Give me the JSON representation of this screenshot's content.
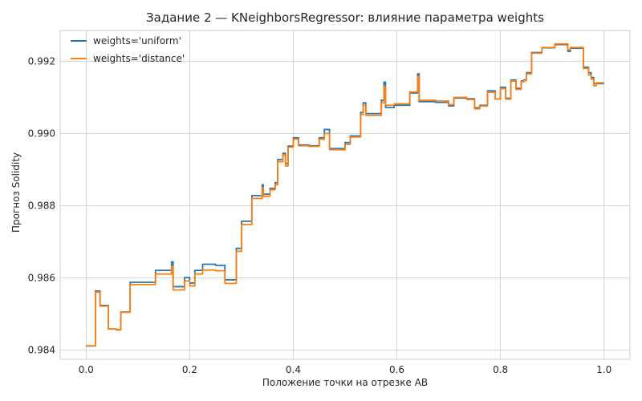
{
  "chart_data": {
    "type": "line",
    "title": "Задание 2 — KNeighborsRegressor: влияние параметра weights",
    "xlabel": "Положение точки на отрезке AB",
    "ylabel": "Прогноз Solidity",
    "xlim": [
      -0.05,
      1.05
    ],
    "ylim": [
      0.98375,
      0.99285
    ],
    "xticks": [
      0.0,
      0.2,
      0.4,
      0.6,
      0.8,
      1.0
    ],
    "xtick_labels": [
      "0.0",
      "0.2",
      "0.4",
      "0.6",
      "0.8",
      "1.0"
    ],
    "yticks": [
      0.984,
      0.986,
      0.988,
      0.99,
      0.992
    ],
    "ytick_labels": [
      "0.984",
      "0.986",
      "0.988",
      "0.990",
      "0.992"
    ],
    "grid": true,
    "legend_position": "top-left",
    "series": [
      {
        "name": "weights='uniform'",
        "color": "#1f77b4",
        "points": [
          [
            0.0,
            0.98412
          ],
          [
            0.018,
            0.98412
          ],
          [
            0.018,
            0.98564
          ],
          [
            0.027,
            0.98564
          ],
          [
            0.027,
            0.98524
          ],
          [
            0.043,
            0.98524
          ],
          [
            0.043,
            0.98459
          ],
          [
            0.058,
            0.98459
          ],
          [
            0.058,
            0.98457
          ],
          [
            0.067,
            0.98457
          ],
          [
            0.067,
            0.98506
          ],
          [
            0.085,
            0.98506
          ],
          [
            0.085,
            0.98588
          ],
          [
            0.134,
            0.98588
          ],
          [
            0.134,
            0.98621
          ],
          [
            0.165,
            0.98621
          ],
          [
            0.165,
            0.98645
          ],
          [
            0.168,
            0.98645
          ],
          [
            0.168,
            0.98576
          ],
          [
            0.19,
            0.98576
          ],
          [
            0.19,
            0.98601
          ],
          [
            0.2,
            0.98601
          ],
          [
            0.2,
            0.98586
          ],
          [
            0.21,
            0.98586
          ],
          [
            0.21,
            0.98621
          ],
          [
            0.225,
            0.98621
          ],
          [
            0.225,
            0.98638
          ],
          [
            0.25,
            0.98638
          ],
          [
            0.25,
            0.98635
          ],
          [
            0.268,
            0.98635
          ],
          [
            0.268,
            0.98595
          ],
          [
            0.29,
            0.98595
          ],
          [
            0.29,
            0.98682
          ],
          [
            0.3,
            0.98682
          ],
          [
            0.3,
            0.98757
          ],
          [
            0.32,
            0.98757
          ],
          [
            0.32,
            0.98828
          ],
          [
            0.34,
            0.98828
          ],
          [
            0.34,
            0.98858
          ],
          [
            0.342,
            0.98858
          ],
          [
            0.342,
            0.98832
          ],
          [
            0.355,
            0.98832
          ],
          [
            0.355,
            0.98848
          ],
          [
            0.365,
            0.98848
          ],
          [
            0.365,
            0.98864
          ],
          [
            0.37,
            0.98864
          ],
          [
            0.37,
            0.98928
          ],
          [
            0.38,
            0.98928
          ],
          [
            0.38,
            0.98945
          ],
          [
            0.385,
            0.98945
          ],
          [
            0.385,
            0.98917
          ],
          [
            0.39,
            0.98917
          ],
          [
            0.39,
            0.98965
          ],
          [
            0.4,
            0.98965
          ],
          [
            0.4,
            0.98988
          ],
          [
            0.41,
            0.98988
          ],
          [
            0.41,
            0.98968
          ],
          [
            0.43,
            0.98968
          ],
          [
            0.43,
            0.98966
          ],
          [
            0.45,
            0.98966
          ],
          [
            0.45,
            0.98988
          ],
          [
            0.46,
            0.98988
          ],
          [
            0.46,
            0.99011
          ],
          [
            0.47,
            0.99011
          ],
          [
            0.47,
            0.98958
          ],
          [
            0.5,
            0.98958
          ],
          [
            0.5,
            0.98975
          ],
          [
            0.51,
            0.98975
          ],
          [
            0.51,
            0.98993
          ],
          [
            0.53,
            0.98993
          ],
          [
            0.53,
            0.99058
          ],
          [
            0.535,
            0.99058
          ],
          [
            0.535,
            0.99085
          ],
          [
            0.54,
            0.99085
          ],
          [
            0.54,
            0.99055
          ],
          [
            0.57,
            0.99055
          ],
          [
            0.57,
            0.99092
          ],
          [
            0.575,
            0.99092
          ],
          [
            0.575,
            0.99142
          ],
          [
            0.578,
            0.99142
          ],
          [
            0.578,
            0.99072
          ],
          [
            0.595,
            0.99072
          ],
          [
            0.595,
            0.99078
          ],
          [
            0.625,
            0.99078
          ],
          [
            0.625,
            0.99112
          ],
          [
            0.64,
            0.99112
          ],
          [
            0.64,
            0.99165
          ],
          [
            0.643,
            0.99165
          ],
          [
            0.643,
            0.99088
          ],
          [
            0.675,
            0.99088
          ],
          [
            0.675,
            0.99086
          ],
          [
            0.7,
            0.99086
          ],
          [
            0.7,
            0.99076
          ],
          [
            0.71,
            0.99076
          ],
          [
            0.71,
            0.99098
          ],
          [
            0.735,
            0.99098
          ],
          [
            0.735,
            0.99096
          ],
          [
            0.75,
            0.99096
          ],
          [
            0.75,
            0.99071
          ],
          [
            0.76,
            0.99071
          ],
          [
            0.76,
            0.99078
          ],
          [
            0.775,
            0.99078
          ],
          [
            0.775,
            0.99118
          ],
          [
            0.79,
            0.99118
          ],
          [
            0.79,
            0.99095
          ],
          [
            0.8,
            0.99095
          ],
          [
            0.8,
            0.99128
          ],
          [
            0.81,
            0.99128
          ],
          [
            0.81,
            0.99097
          ],
          [
            0.82,
            0.99097
          ],
          [
            0.82,
            0.99148
          ],
          [
            0.83,
            0.99148
          ],
          [
            0.83,
            0.99125
          ],
          [
            0.84,
            0.99125
          ],
          [
            0.84,
            0.99145
          ],
          [
            0.845,
            0.99145
          ],
          [
            0.845,
            0.99148
          ],
          [
            0.85,
            0.99148
          ],
          [
            0.85,
            0.99168
          ],
          [
            0.86,
            0.99168
          ],
          [
            0.86,
            0.99224
          ],
          [
            0.88,
            0.99224
          ],
          [
            0.88,
            0.99237
          ],
          [
            0.905,
            0.99237
          ],
          [
            0.905,
            0.99246
          ],
          [
            0.93,
            0.99246
          ],
          [
            0.93,
            0.99227
          ],
          [
            0.935,
            0.99227
          ],
          [
            0.935,
            0.99236
          ],
          [
            0.96,
            0.99236
          ],
          [
            0.96,
            0.99183
          ],
          [
            0.97,
            0.99183
          ],
          [
            0.97,
            0.99168
          ],
          [
            0.975,
            0.99168
          ],
          [
            0.975,
            0.99155
          ],
          [
            0.98,
            0.99155
          ],
          [
            0.98,
            0.99138
          ],
          [
            1.0,
            0.99138
          ]
        ]
      },
      {
        "name": "weights='distance'",
        "color": "#ff7f0e",
        "points": [
          [
            0.0,
            0.98412
          ],
          [
            0.018,
            0.98412
          ],
          [
            0.018,
            0.98561
          ],
          [
            0.027,
            0.98561
          ],
          [
            0.027,
            0.98522
          ],
          [
            0.043,
            0.98522
          ],
          [
            0.043,
            0.98459
          ],
          [
            0.058,
            0.98459
          ],
          [
            0.058,
            0.98456
          ],
          [
            0.067,
            0.98456
          ],
          [
            0.067,
            0.98505
          ],
          [
            0.085,
            0.98505
          ],
          [
            0.085,
            0.98582
          ],
          [
            0.134,
            0.98582
          ],
          [
            0.134,
            0.98611
          ],
          [
            0.165,
            0.98611
          ],
          [
            0.165,
            0.98632
          ],
          [
            0.168,
            0.98632
          ],
          [
            0.168,
            0.98567
          ],
          [
            0.19,
            0.98567
          ],
          [
            0.19,
            0.98592
          ],
          [
            0.2,
            0.98592
          ],
          [
            0.2,
            0.98578
          ],
          [
            0.21,
            0.98578
          ],
          [
            0.21,
            0.98611
          ],
          [
            0.225,
            0.98611
          ],
          [
            0.225,
            0.98622
          ],
          [
            0.25,
            0.98622
          ],
          [
            0.25,
            0.9862
          ],
          [
            0.268,
            0.9862
          ],
          [
            0.268,
            0.98585
          ],
          [
            0.29,
            0.98585
          ],
          [
            0.29,
            0.98674
          ],
          [
            0.3,
            0.98674
          ],
          [
            0.3,
            0.98748
          ],
          [
            0.32,
            0.98748
          ],
          [
            0.32,
            0.9882
          ],
          [
            0.34,
            0.9882
          ],
          [
            0.34,
            0.9885
          ],
          [
            0.342,
            0.9885
          ],
          [
            0.342,
            0.98826
          ],
          [
            0.355,
            0.98826
          ],
          [
            0.355,
            0.98844
          ],
          [
            0.365,
            0.98844
          ],
          [
            0.365,
            0.98858
          ],
          [
            0.37,
            0.98858
          ],
          [
            0.37,
            0.98922
          ],
          [
            0.38,
            0.98922
          ],
          [
            0.38,
            0.9894
          ],
          [
            0.385,
            0.9894
          ],
          [
            0.385,
            0.9891
          ],
          [
            0.39,
            0.9891
          ],
          [
            0.39,
            0.98962
          ],
          [
            0.4,
            0.98962
          ],
          [
            0.4,
            0.98984
          ],
          [
            0.41,
            0.98984
          ],
          [
            0.41,
            0.98966
          ],
          [
            0.43,
            0.98966
          ],
          [
            0.43,
            0.98964
          ],
          [
            0.45,
            0.98964
          ],
          [
            0.45,
            0.98984
          ],
          [
            0.46,
            0.98984
          ],
          [
            0.46,
            0.99
          ],
          [
            0.47,
            0.99
          ],
          [
            0.47,
            0.98955
          ],
          [
            0.5,
            0.98955
          ],
          [
            0.5,
            0.9897
          ],
          [
            0.51,
            0.9897
          ],
          [
            0.51,
            0.9899
          ],
          [
            0.53,
            0.9899
          ],
          [
            0.53,
            0.99052
          ],
          [
            0.535,
            0.99052
          ],
          [
            0.535,
            0.99078
          ],
          [
            0.54,
            0.99078
          ],
          [
            0.54,
            0.9905
          ],
          [
            0.57,
            0.9905
          ],
          [
            0.57,
            0.99085
          ],
          [
            0.575,
            0.99085
          ],
          [
            0.575,
            0.9913
          ],
          [
            0.578,
            0.9913
          ],
          [
            0.578,
            0.99078
          ],
          [
            0.595,
            0.99078
          ],
          [
            0.595,
            0.99082
          ],
          [
            0.625,
            0.99082
          ],
          [
            0.625,
            0.99115
          ],
          [
            0.64,
            0.99115
          ],
          [
            0.64,
            0.99158
          ],
          [
            0.643,
            0.99158
          ],
          [
            0.643,
            0.99092
          ],
          [
            0.675,
            0.99092
          ],
          [
            0.675,
            0.9909
          ],
          [
            0.7,
            0.9909
          ],
          [
            0.7,
            0.9908
          ],
          [
            0.71,
            0.9908
          ],
          [
            0.71,
            0.991
          ],
          [
            0.735,
            0.991
          ],
          [
            0.735,
            0.99094
          ],
          [
            0.75,
            0.99094
          ],
          [
            0.75,
            0.99068
          ],
          [
            0.76,
            0.99068
          ],
          [
            0.76,
            0.99076
          ],
          [
            0.775,
            0.99076
          ],
          [
            0.775,
            0.99114
          ],
          [
            0.79,
            0.99114
          ],
          [
            0.79,
            0.99095
          ],
          [
            0.8,
            0.99095
          ],
          [
            0.8,
            0.99124
          ],
          [
            0.81,
            0.99124
          ],
          [
            0.81,
            0.99095
          ],
          [
            0.82,
            0.99095
          ],
          [
            0.82,
            0.99145
          ],
          [
            0.83,
            0.99145
          ],
          [
            0.83,
            0.99122
          ],
          [
            0.84,
            0.99122
          ],
          [
            0.84,
            0.99143
          ],
          [
            0.845,
            0.99143
          ],
          [
            0.845,
            0.99146
          ],
          [
            0.85,
            0.99146
          ],
          [
            0.85,
            0.99165
          ],
          [
            0.86,
            0.99165
          ],
          [
            0.86,
            0.99222
          ],
          [
            0.88,
            0.99222
          ],
          [
            0.88,
            0.99238
          ],
          [
            0.905,
            0.99238
          ],
          [
            0.905,
            0.99248
          ],
          [
            0.93,
            0.99248
          ],
          [
            0.93,
            0.99232
          ],
          [
            0.935,
            0.99232
          ],
          [
            0.935,
            0.99238
          ],
          [
            0.96,
            0.99238
          ],
          [
            0.96,
            0.9918
          ],
          [
            0.97,
            0.9918
          ],
          [
            0.97,
            0.99162
          ],
          [
            0.975,
            0.99162
          ],
          [
            0.975,
            0.9915
          ],
          [
            0.98,
            0.9915
          ],
          [
            0.98,
            0.99132
          ],
          [
            0.985,
            0.99132
          ],
          [
            0.985,
            0.9914
          ],
          [
            1.0,
            0.9914
          ]
        ]
      }
    ]
  }
}
